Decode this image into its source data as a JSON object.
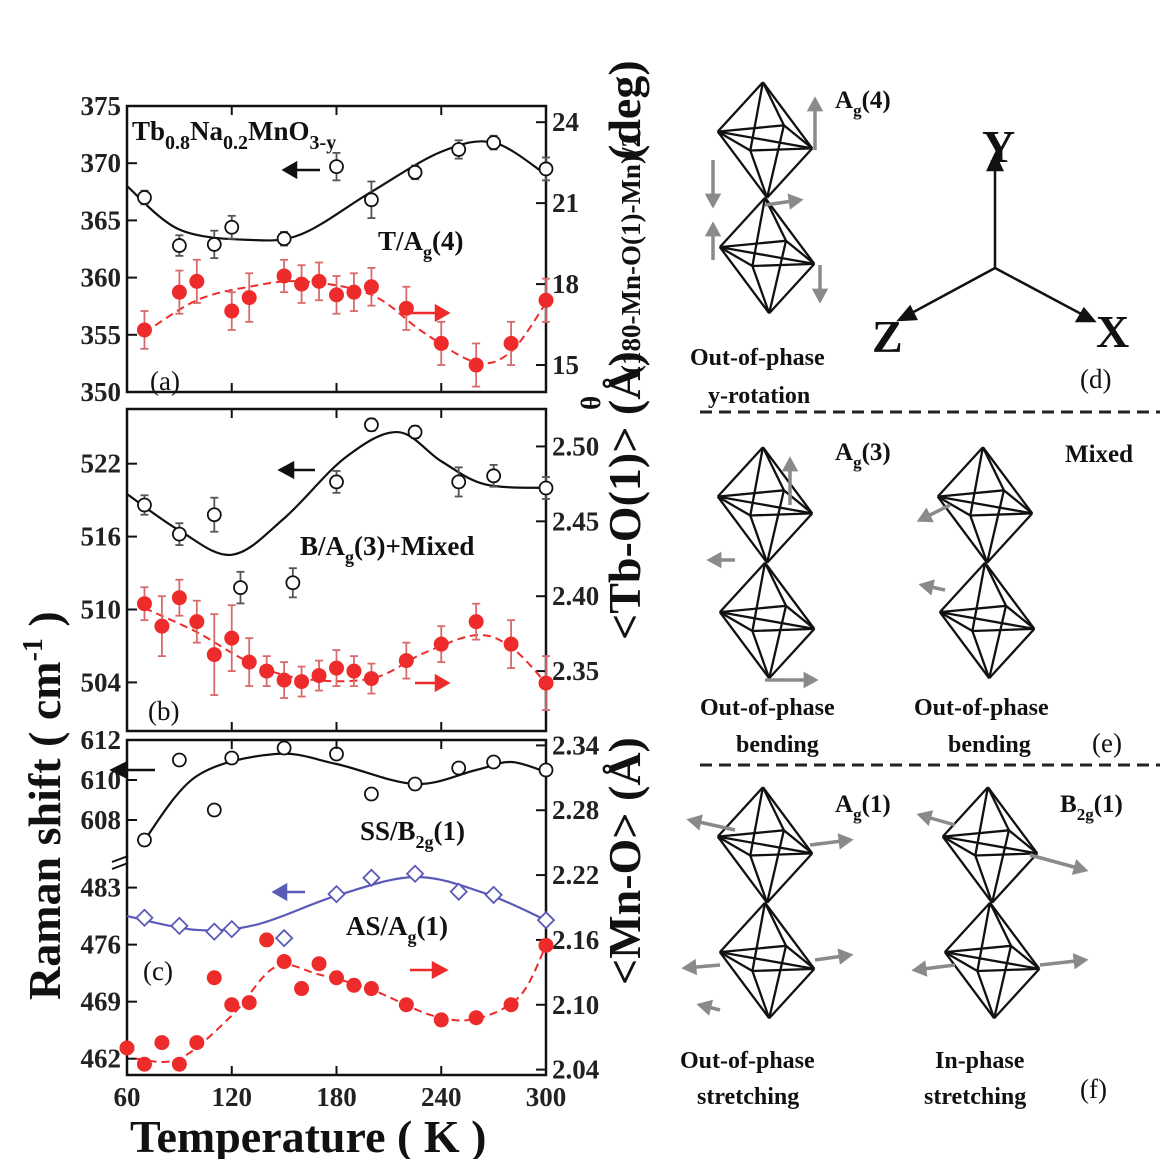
{
  "chart_data": [
    {
      "panel_letter": "(a)",
      "type": "scatter",
      "compound": {
        "base": "Tb",
        "s1": "0.8",
        "m1": "Na",
        "s2": "0.2",
        "m2": "MnO",
        "s3": "3-y"
      },
      "mode_label": {
        "base": "T/A",
        "sub": "g",
        "tail": "(4)"
      },
      "xlim": [
        60,
        300
      ],
      "ylim_left": [
        350,
        375
      ],
      "ylim_right": [
        14,
        24.6
      ],
      "yticks_left": [
        "350",
        "355",
        "360",
        "365",
        "370",
        "375"
      ],
      "yticks_right": [
        "15",
        "18",
        "21",
        "24"
      ],
      "series": [
        {
          "axis": "left",
          "style": "open",
          "color": "#111111",
          "x": [
            70,
            90,
            110,
            120,
            150,
            180,
            200,
            225,
            250,
            270,
            300
          ],
          "y": [
            367,
            362.8,
            362.9,
            364.4,
            363.4,
            369.7,
            366.8,
            369.2,
            371.2,
            371.8,
            369.5
          ],
          "err": [
            0.6,
            0.9,
            1.2,
            1.0,
            0.6,
            1.2,
            1.6,
            0.6,
            0.8,
            0.6,
            1.0
          ]
        },
        {
          "axis": "right",
          "style": "filled",
          "color": "#ee2b2b",
          "x": [
            70,
            90,
            100,
            120,
            130,
            150,
            160,
            170,
            180,
            190,
            200,
            220,
            240,
            260,
            280,
            300
          ],
          "y": [
            16.3,
            17.7,
            18.1,
            17.0,
            17.5,
            18.3,
            18.0,
            18.1,
            17.6,
            17.7,
            17.9,
            17.1,
            15.8,
            15.0,
            15.8,
            17.4
          ],
          "err": [
            0.7,
            0.8,
            0.8,
            0.7,
            0.9,
            0.6,
            0.7,
            0.7,
            0.7,
            0.7,
            0.7,
            0.8,
            0.8,
            0.8,
            0.8,
            0.8
          ]
        }
      ]
    },
    {
      "panel_letter": "(b)",
      "type": "scatter",
      "mode_label": {
        "base": "B/A",
        "sub": "g",
        "tail": "(3)+Mixed"
      },
      "xlim": [
        60,
        300
      ],
      "ylim_left": [
        500,
        526.5
      ],
      "ylim_right": [
        2.31,
        2.525
      ],
      "yticks_left": [
        "504",
        "510",
        "516",
        "522"
      ],
      "yticks_right": [
        "2.35",
        "2.40",
        "2.45",
        "2.50"
      ],
      "series": [
        {
          "axis": "left",
          "style": "open",
          "color": "#111111",
          "x": [
            70,
            90,
            110,
            125,
            155,
            180,
            200,
            225,
            250,
            270,
            300
          ],
          "y": [
            518.6,
            516.2,
            517.8,
            511.8,
            512.2,
            520.5,
            525.2,
            524.6,
            520.5,
            521,
            520
          ],
          "err": [
            0.8,
            0.9,
            1.4,
            1.3,
            1.2,
            0.9,
            0.5,
            0.5,
            1.2,
            0.9,
            0.9
          ]
        },
        {
          "axis": "right",
          "style": "filled",
          "color": "#ee2b2b",
          "x": [
            70,
            80,
            90,
            100,
            110,
            120,
            130,
            140,
            150,
            160,
            170,
            180,
            190,
            200,
            220,
            240,
            260,
            280,
            300
          ],
          "y": [
            2.395,
            2.38,
            2.399,
            2.383,
            2.361,
            2.372,
            2.356,
            2.35,
            2.344,
            2.343,
            2.347,
            2.352,
            2.35,
            2.345,
            2.357,
            2.368,
            2.383,
            2.368,
            2.342
          ],
          "err": [
            0.011,
            0.02,
            0.012,
            0.014,
            0.027,
            0.022,
            0.016,
            0.01,
            0.012,
            0.01,
            0.01,
            0.012,
            0.01,
            0.01,
            0.012,
            0.012,
            0.012,
            0.016,
            0.018
          ]
        }
      ]
    },
    {
      "panel_letter": "(c)",
      "type": "scatter",
      "xlim": [
        60,
        300
      ],
      "xticks": [
        "60",
        "120",
        "180",
        "240",
        "300"
      ],
      "xlabel": "Temperature ( K )",
      "ylim_right": [
        2.035,
        2.345
      ],
      "yticks_right": [
        "2.04",
        "2.10",
        "2.16",
        "2.22",
        "2.28",
        "2.34"
      ],
      "upper_segment": {
        "ylim": [
          606.5,
          612
        ],
        "yticks": [
          "608",
          "610",
          "612"
        ],
        "mode_label": {
          "base": "SS/B",
          "sub": "2g",
          "tail": "(1)"
        }
      },
      "lower_segment": {
        "ylim": [
          460,
          487
        ],
        "yticks": [
          "462",
          "469",
          "476",
          "483"
        ],
        "mode_label": {
          "base": "AS/A",
          "sub": "g",
          "tail": "(1)"
        }
      },
      "series": [
        {
          "axis": "left-upper",
          "style": "open",
          "color": "#111111",
          "x": [
            70,
            90,
            110,
            120,
            150,
            180,
            200,
            225,
            250,
            270,
            300
          ],
          "y": [
            607,
            611,
            608.5,
            611.1,
            611.6,
            611.3,
            609.3,
            609.8,
            610.6,
            610.9,
            610.5
          ],
          "err": [
            0.2,
            0.2,
            0.2,
            0.2,
            0.2,
            0.2,
            0.2,
            0.2,
            0.2,
            0.2,
            0.2
          ]
        },
        {
          "axis": "left-lower",
          "style": "open-diamond",
          "color": "#5a5ab8",
          "x": [
            70,
            90,
            110,
            120,
            150,
            180,
            200,
            225,
            250,
            270,
            300
          ],
          "y": [
            479.3,
            478.3,
            477.6,
            477.9,
            476.8,
            482.2,
            484.2,
            484.7,
            482.5,
            482.1,
            479
          ]
        },
        {
          "axis": "right",
          "style": "filled",
          "color": "#ee2b2b",
          "x": [
            60,
            70,
            80,
            90,
            100,
            110,
            120,
            130,
            140,
            150,
            160,
            170,
            180,
            190,
            200,
            220,
            240,
            260,
            280,
            300
          ],
          "y": [
            2.06,
            2.045,
            2.065,
            2.045,
            2.065,
            2.125,
            2.1,
            2.102,
            2.16,
            2.14,
            2.115,
            2.138,
            2.125,
            2.118,
            2.115,
            2.1,
            2.086,
            2.088,
            2.1,
            2.155
          ]
        }
      ]
    }
  ],
  "axis_labels": {
    "left": "Raman shift ( cm",
    "left_sup": "-1",
    "left_close": " )",
    "right_a": "(deg)",
    "right_a_theta": "θ",
    "right_a_sub": "(180-Mn-O(1)-Mn)/2",
    "right_b": "<Tb-O(1)> (Å)",
    "right_c": "<Mn-O> (Å)"
  },
  "schematic": {
    "d": {
      "letter": "(d)",
      "mode": {
        "base": "A",
        "sub": "g",
        "tail": "(4)"
      },
      "caption": [
        "Out-of-phase",
        "y-rotation"
      ],
      "axes": {
        "y": "Y",
        "x": "X",
        "z": "Z"
      }
    },
    "e": {
      "letter": "(e)",
      "left": {
        "mode": {
          "base": "A",
          "sub": "g",
          "tail": "(3)"
        },
        "caption": [
          "Out-of-phase",
          "bending"
        ]
      },
      "right": {
        "mode": {
          "base": "Mixed",
          "sub": "",
          "tail": ""
        },
        "caption": [
          "Out-of-phase",
          "bending"
        ]
      }
    },
    "f": {
      "letter": "(f)",
      "left": {
        "mode": {
          "base": "A",
          "sub": "g",
          "tail": "(1)"
        },
        "caption": [
          "Out-of-phase",
          "stretching"
        ]
      },
      "right": {
        "mode": {
          "base": "B",
          "sub": "2g",
          "tail": "(1)"
        },
        "caption": [
          "In-phase",
          "stretching"
        ]
      }
    }
  },
  "colors": {
    "open_series": "#111111",
    "filled_series": "#ee2b2b",
    "diamond_series": "#5a5ab8",
    "arrow": "#8a8a8a",
    "divider": "#222222"
  }
}
